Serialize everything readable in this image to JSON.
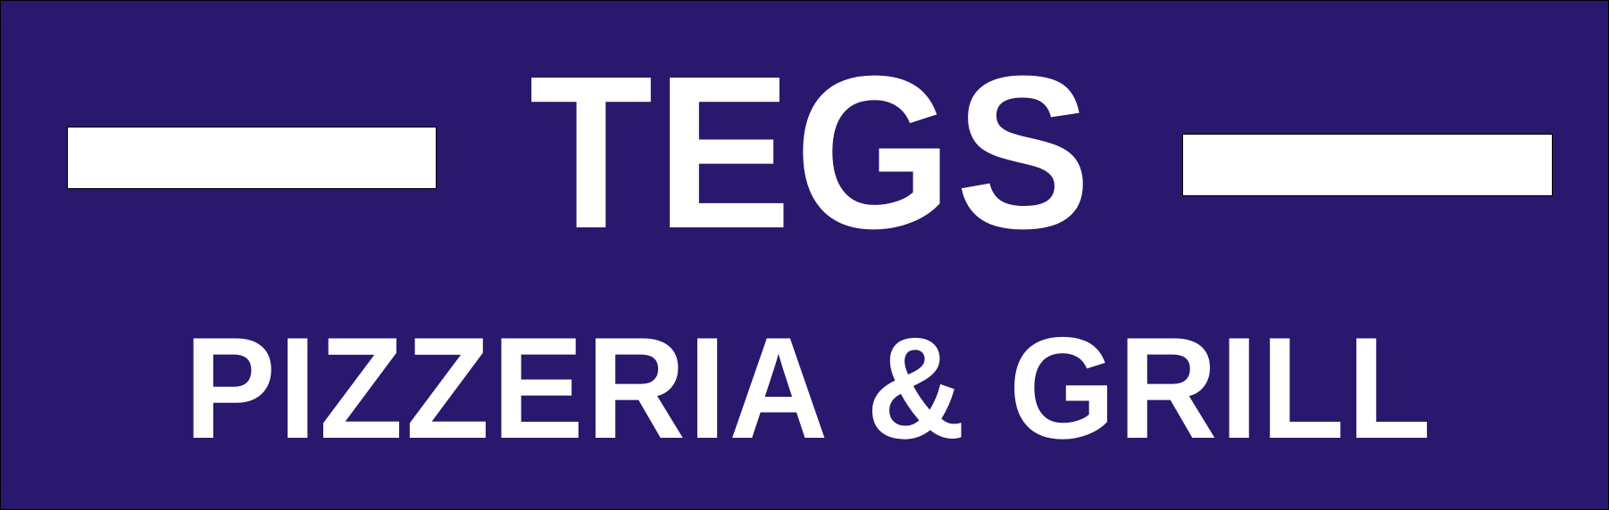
{
  "sign": {
    "title": "TEGS",
    "subtitle": "PIZZERIA & GRILL",
    "colors": {
      "background": "#29186d",
      "text": "#ffffff",
      "bars": "#ffffff"
    }
  }
}
